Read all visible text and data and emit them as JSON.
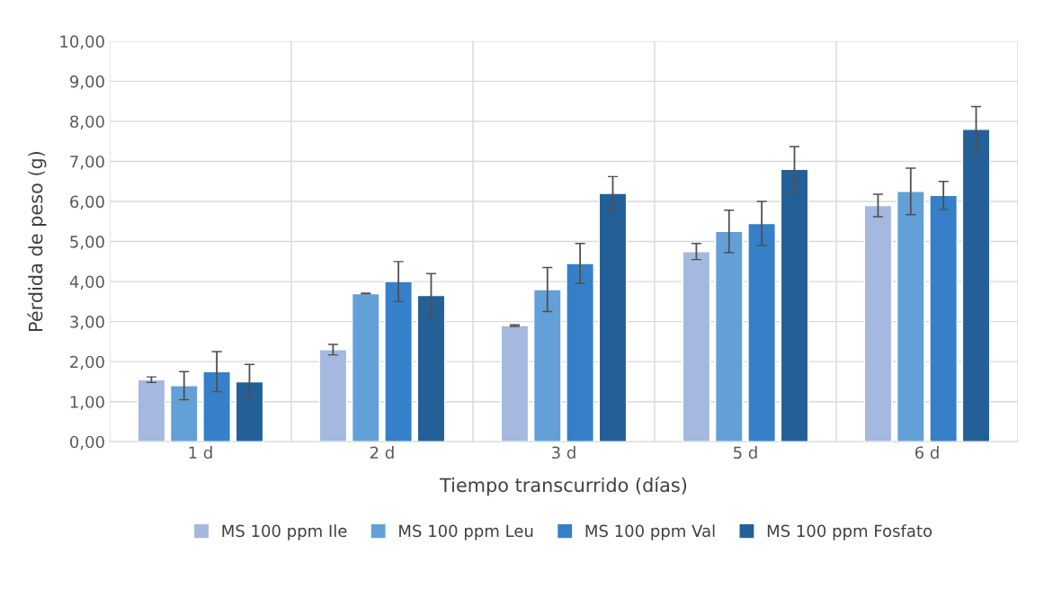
{
  "chart_data": {
    "type": "bar",
    "xlabel": "Tiempo transcurrido (días)",
    "ylabel": "Pérdida de peso (g)",
    "categories": [
      "1 d",
      "2 d",
      "3 d",
      "5 d",
      "6 d"
    ],
    "series": [
      {
        "name": "MS 100 ppm Ile",
        "color": "#a4b8e0",
        "values": [
          1.55,
          2.3,
          2.9,
          4.75,
          5.9
        ],
        "errors": [
          0.07,
          0.13,
          0.02,
          0.2,
          0.28
        ]
      },
      {
        "name": "MS 100 ppm Leu",
        "color": "#63a0d8",
        "values": [
          1.4,
          3.7,
          3.8,
          5.25,
          6.25
        ],
        "errors": [
          0.35,
          0.01,
          0.55,
          0.53,
          0.58
        ]
      },
      {
        "name": "MS 100 ppm Val",
        "color": "#3580c8",
        "values": [
          1.75,
          4.0,
          4.45,
          5.45,
          6.15
        ],
        "errors": [
          0.5,
          0.5,
          0.5,
          0.55,
          0.35
        ]
      },
      {
        "name": "MS 100 ppm Fosfato",
        "color": "#246098",
        "values": [
          1.5,
          3.65,
          6.2,
          6.8,
          7.8
        ],
        "errors": [
          0.43,
          0.55,
          0.42,
          0.57,
          0.57
        ]
      }
    ],
    "ylim": [
      0,
      10
    ],
    "yticks": [
      {
        "value": 0,
        "label": "0,00"
      },
      {
        "value": 1,
        "label": "1,00"
      },
      {
        "value": 2,
        "label": "2,00"
      },
      {
        "value": 3,
        "label": "3,00"
      },
      {
        "value": 4,
        "label": "4,00"
      },
      {
        "value": 5,
        "label": "5,00"
      },
      {
        "value": 6,
        "label": "6,00"
      },
      {
        "value": 7,
        "label": "7,00"
      },
      {
        "value": 8,
        "label": "8,00"
      },
      {
        "value": 9,
        "label": "9,00"
      },
      {
        "value": 10,
        "label": "10,00"
      }
    ],
    "grid": true,
    "legend": "bottom"
  }
}
